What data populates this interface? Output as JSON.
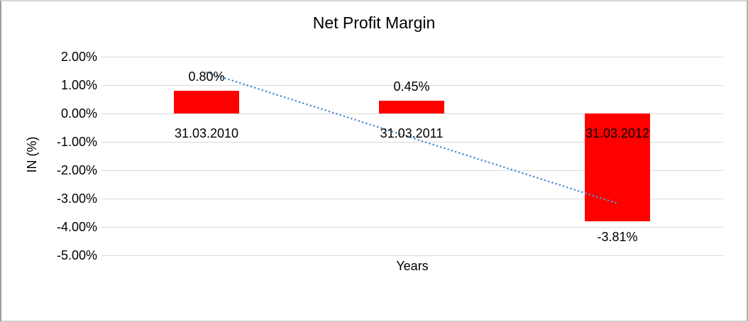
{
  "chart_data": {
    "type": "bar",
    "title": "Net Profit Margin",
    "xlabel": "Years",
    "ylabel": "IN (%)",
    "categories": [
      "31.03.2010",
      "31.03.2011",
      "31.03.2012"
    ],
    "values": [
      0.8,
      0.45,
      -3.81
    ],
    "value_labels": [
      "0.80%",
      "0.45%",
      "-3.81%"
    ],
    "ytick_values": [
      2,
      1,
      0,
      -1,
      -2,
      -3,
      -4,
      -5
    ],
    "ytick_labels": [
      "2.00%",
      "1.00%",
      "0.00%",
      "-1.00%",
      "-2.00%",
      "-3.00%",
      "-4.00%",
      "-5.00%"
    ],
    "ylim": [
      -5,
      2
    ],
    "grid": true,
    "legend": false,
    "bar_color": "#FF0000",
    "gridline_color": "#D9D9D9",
    "text_color": "#000000",
    "trendline": {
      "type": "linear",
      "style": "dotted",
      "color": "#5593D6",
      "start_category_index": 0,
      "end_category_index": 2,
      "start_pct": 1.45,
      "end_pct": -3.16
    }
  }
}
